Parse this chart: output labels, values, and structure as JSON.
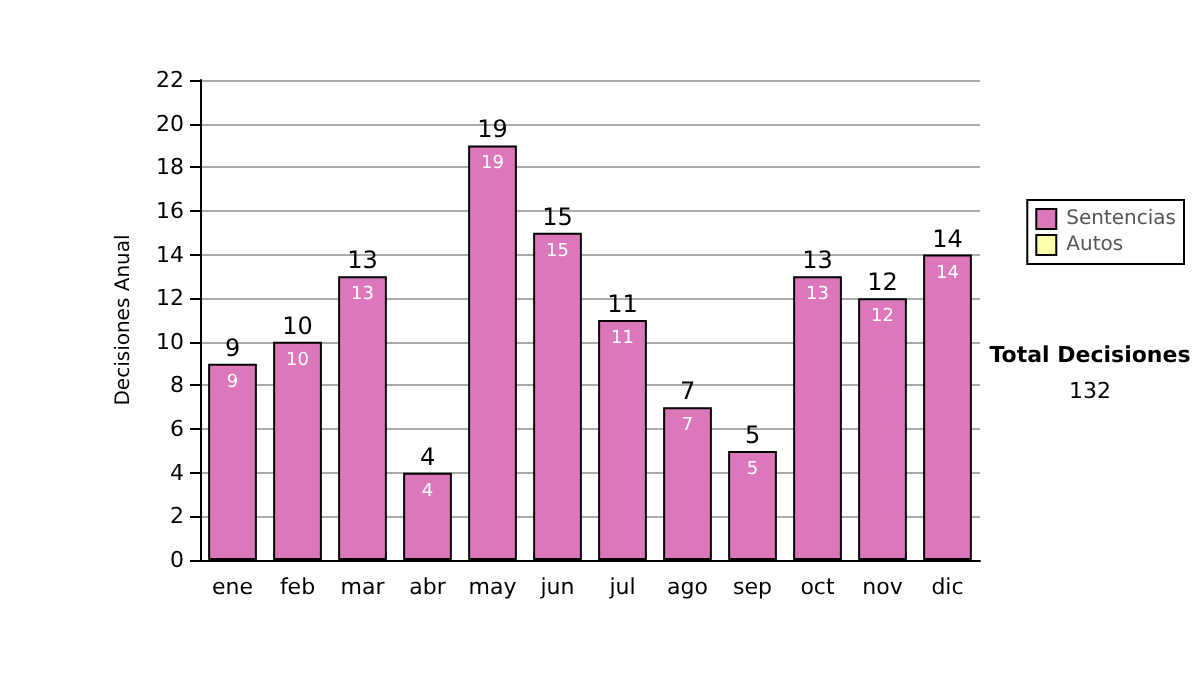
{
  "chart_data": {
    "type": "bar",
    "ylabel": "Decisiones Anual",
    "categories": [
      "ene",
      "feb",
      "mar",
      "abr",
      "may",
      "jun",
      "jul",
      "ago",
      "sep",
      "oct",
      "nov",
      "dic"
    ],
    "series": [
      {
        "name": "Sentencias",
        "color": "#dd77bb",
        "values": [
          9,
          10,
          13,
          4,
          19,
          15,
          11,
          7,
          5,
          13,
          12,
          14
        ]
      },
      {
        "name": "Autos",
        "color": "#ffffaa",
        "values": [
          null,
          null,
          null,
          null,
          null,
          null,
          null,
          null,
          null,
          null,
          null,
          null
        ]
      }
    ],
    "stacked": true,
    "data_labels": true,
    "totals": [
      "9",
      "10",
      "13",
      "4",
      "19",
      "15",
      "11",
      "7",
      "5",
      "13",
      "12",
      "14"
    ],
    "ylim": [
      0,
      22
    ],
    "yticks": [
      0,
      2,
      4,
      6,
      8,
      10,
      12,
      14,
      16,
      18,
      20,
      22
    ],
    "grid": "y",
    "legend": "right",
    "annotations": [
      "Total Decisiones",
      "132"
    ]
  }
}
